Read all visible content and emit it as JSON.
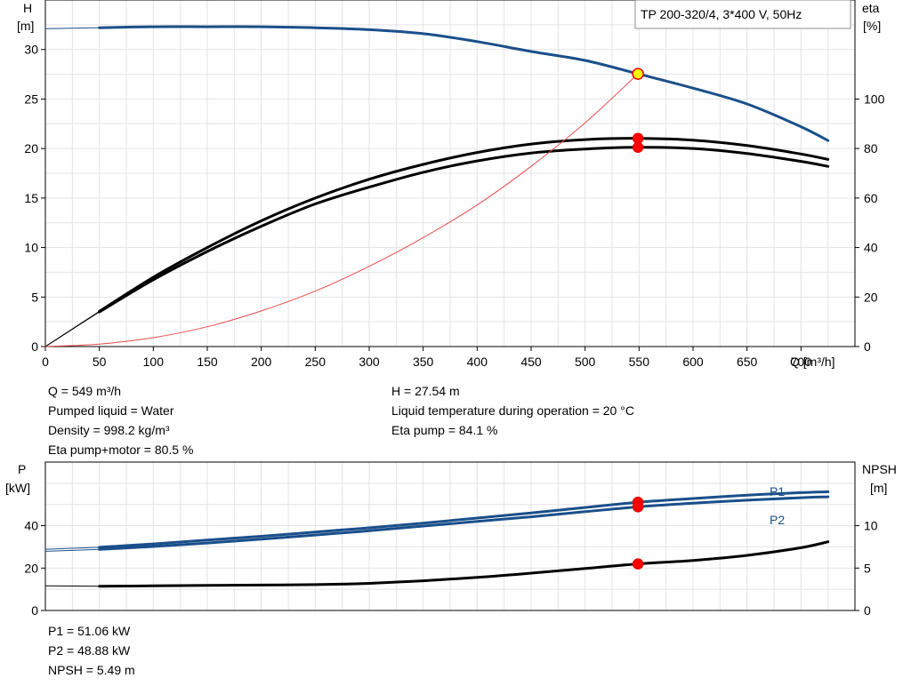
{
  "chart_data": [
    {
      "type": "line",
      "title": "TP 200-320/4, 3*400 V, 50Hz",
      "xlabel": "Q [m³/h]",
      "ylabel_left": [
        "H",
        "[m]"
      ],
      "ylabel_right": [
        "eta",
        "[%]"
      ],
      "xlim": [
        0,
        750
      ],
      "ylim_left": [
        0,
        35
      ],
      "ylim_right": [
        0,
        140
      ],
      "x_ticks": [
        0,
        50,
        100,
        150,
        200,
        250,
        300,
        350,
        400,
        450,
        500,
        550,
        600,
        650,
        700
      ],
      "y_ticks_left": [
        0,
        5,
        10,
        15,
        20,
        25,
        30
      ],
      "y_ticks_right": [
        0,
        20,
        40,
        60,
        80,
        100
      ],
      "grid": true,
      "series": [
        {
          "axis": "left",
          "color": "#1a4f8a",
          "extension": [
            [
              0,
              32.1
            ],
            [
              50,
              32.2
            ]
          ],
          "points": [
            [
              50,
              32.2
            ],
            [
              100,
              32.3
            ],
            [
              150,
              32.3
            ],
            [
              200,
              32.3
            ],
            [
              250,
              32.2
            ],
            [
              300,
              32.0
            ],
            [
              350,
              31.6
            ],
            [
              400,
              30.8
            ],
            [
              450,
              29.8
            ],
            [
              500,
              28.9
            ],
            [
              549,
              27.54
            ],
            [
              600,
              26.1
            ],
            [
              650,
              24.5
            ],
            [
              700,
              22.2
            ],
            [
              725,
              20.8
            ]
          ]
        },
        {
          "axis": "right",
          "color": "#000000",
          "extension": [
            [
              0,
              0
            ],
            [
              50,
              14.2
            ]
          ],
          "points": [
            [
              50,
              14.2
            ],
            [
              100,
              28
            ],
            [
              150,
              40
            ],
            [
              200,
              50.8
            ],
            [
              250,
              60
            ],
            [
              300,
              67.6
            ],
            [
              350,
              73.6
            ],
            [
              400,
              78.4
            ],
            [
              450,
              81.8
            ],
            [
              500,
              83.6
            ],
            [
              549,
              84.1
            ],
            [
              600,
              83.4
            ],
            [
              650,
              81.2
            ],
            [
              700,
              77.8
            ],
            [
              725,
              75.6
            ]
          ]
        },
        {
          "axis": "right",
          "color": "#000000",
          "extension": [
            [
              0,
              0
            ],
            [
              50,
              14
            ]
          ],
          "points": [
            [
              50,
              14
            ],
            [
              100,
              27
            ],
            [
              150,
              38.4
            ],
            [
              200,
              48.6
            ],
            [
              250,
              57.6
            ],
            [
              300,
              64.4
            ],
            [
              350,
              70.4
            ],
            [
              400,
              75
            ],
            [
              450,
              78.2
            ],
            [
              500,
              79.8
            ],
            [
              549,
              80.5
            ],
            [
              600,
              80
            ],
            [
              650,
              78
            ],
            [
              700,
              74.8
            ],
            [
              725,
              72.8
            ]
          ]
        },
        {
          "axis": "left",
          "color": "#e84a4a",
          "points": [
            [
              0,
              0
            ],
            [
              50,
              0.25
            ],
            [
              100,
              0.9
            ],
            [
              150,
              2.0
            ],
            [
              200,
              3.6
            ],
            [
              250,
              5.6
            ],
            [
              300,
              8.1
            ],
            [
              350,
              11.0
            ],
            [
              400,
              14.3
            ],
            [
              450,
              18.2
            ],
            [
              500,
              22.6
            ],
            [
              549,
              27.54
            ]
          ]
        }
      ],
      "operating_points": [
        [
          549,
          27.54,
          "left",
          "#ffff00"
        ],
        [
          549,
          84.1,
          "right",
          "#ff0000"
        ],
        [
          549,
          80.5,
          "right",
          "#ff0000"
        ]
      ]
    },
    {
      "type": "line",
      "xlim": [
        0,
        750
      ],
      "ylim_left": [
        0,
        70
      ],
      "ylim_right": [
        0,
        17.5
      ],
      "ylabel_left": [
        "P",
        "[kW]"
      ],
      "ylabel_right": [
        "NPSH",
        "[m]"
      ],
      "y_ticks_left": [
        0,
        20,
        40
      ],
      "y_ticks_right": [
        0,
        5,
        10
      ],
      "grid": true,
      "series": [
        {
          "name": "P1",
          "axis": "left",
          "color": "#1a4f8a",
          "extension": [
            [
              0,
              28.9
            ],
            [
              50,
              29.8
            ]
          ],
          "points": [
            [
              50,
              29.8
            ],
            [
              100,
              31.4
            ],
            [
              150,
              33.2
            ],
            [
              200,
              35
            ],
            [
              250,
              37
            ],
            [
              300,
              39
            ],
            [
              350,
              41.2
            ],
            [
              400,
              43.6
            ],
            [
              450,
              46
            ],
            [
              500,
              48.6
            ],
            [
              549,
              51.06
            ],
            [
              600,
              52.8
            ],
            [
              650,
              54.4
            ],
            [
              700,
              55.6
            ],
            [
              725,
              56
            ]
          ]
        },
        {
          "name": "P2",
          "axis": "left",
          "color": "#1a4f8a",
          "extension": [
            [
              0,
              27.9
            ],
            [
              50,
              28.8
            ]
          ],
          "points": [
            [
              50,
              28.8
            ],
            [
              100,
              30.2
            ],
            [
              150,
              31.8
            ],
            [
              200,
              33.6
            ],
            [
              250,
              35.6
            ],
            [
              300,
              37.6
            ],
            [
              350,
              39.8
            ],
            [
              400,
              42
            ],
            [
              450,
              44.2
            ],
            [
              500,
              46.6
            ],
            [
              549,
              48.88
            ],
            [
              600,
              50.6
            ],
            [
              650,
              52
            ],
            [
              700,
              53.2
            ],
            [
              725,
              53.6
            ]
          ]
        },
        {
          "axis": "right",
          "color": "#000000",
          "extension": [
            [
              0,
              2.9
            ],
            [
              50,
              2.85
            ]
          ],
          "points": [
            [
              50,
              2.85
            ],
            [
              100,
              2.9
            ],
            [
              150,
              2.95
            ],
            [
              200,
              3.0
            ],
            [
              250,
              3.05
            ],
            [
              300,
              3.2
            ],
            [
              350,
              3.5
            ],
            [
              400,
              3.9
            ],
            [
              450,
              4.4
            ],
            [
              500,
              4.95
            ],
            [
              549,
              5.49
            ],
            [
              600,
              5.9
            ],
            [
              650,
              6.5
            ],
            [
              700,
              7.4
            ],
            [
              725,
              8.1
            ]
          ]
        }
      ],
      "operating_points": [
        [
          549,
          51.06,
          "left",
          "#ff0000"
        ],
        [
          549,
          48.88,
          "left",
          "#ff0000"
        ],
        [
          549,
          5.49,
          "right",
          "#ff0000"
        ]
      ]
    }
  ],
  "info_left": [
    "Q = 549 m³/h",
    "Pumped liquid = Water",
    "Density = 998.2 kg/m³",
    "Eta pump+motor = 80.5 %"
  ],
  "info_right": [
    "H = 27.54 m",
    "Liquid temperature during operation = 20 °C",
    "Eta pump = 84.1 %"
  ],
  "info_bottom": [
    "P1 = 51.06 kW",
    "P2 = 48.88 kW",
    "NPSH = 5.49 m"
  ]
}
